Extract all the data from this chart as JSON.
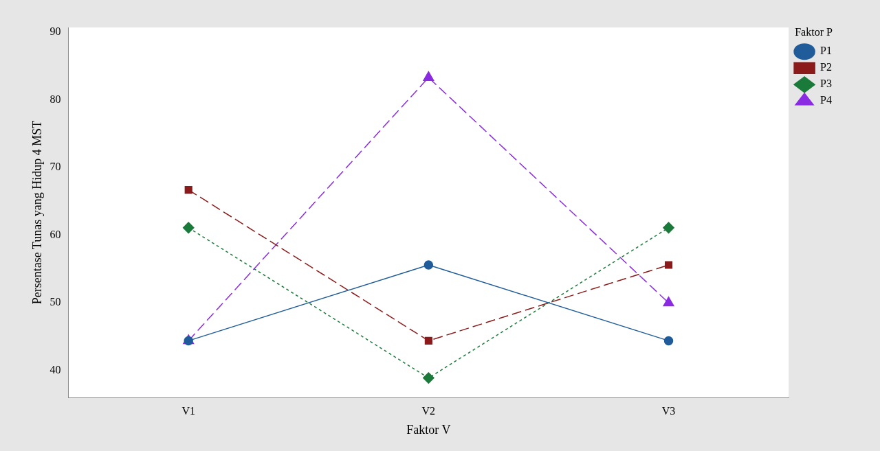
{
  "chart_data": {
    "type": "line",
    "xlabel": "Faktor V",
    "ylabel": "Persentase Tunas yang Hidup 4 MST",
    "legend_title": "Faktor P",
    "categories": [
      "V1",
      "V2",
      "V3"
    ],
    "series": [
      {
        "name": "P1",
        "color": "#1f5c99",
        "values": [
          44.4,
          55.6,
          44.4
        ],
        "marker": "circle",
        "line_style": "solid"
      },
      {
        "name": "P2",
        "color": "#8b1a1a",
        "values": [
          66.7,
          44.4,
          55.6
        ],
        "marker": "square",
        "line_style": "dashed"
      },
      {
        "name": "P3",
        "color": "#1a7a3a",
        "values": [
          61.1,
          38.9,
          61.1
        ],
        "marker": "diamond",
        "line_style": "dotted"
      },
      {
        "name": "P4",
        "color": "#8a2be2",
        "values": [
          44.4,
          83.3,
          50.0
        ],
        "marker": "triangle",
        "line_style": "dashed"
      }
    ],
    "ylim": [
      36,
      90.7
    ],
    "yticks": [
      40,
      50,
      60,
      70,
      80,
      90
    ],
    "grid": false,
    "legend": "top right"
  }
}
